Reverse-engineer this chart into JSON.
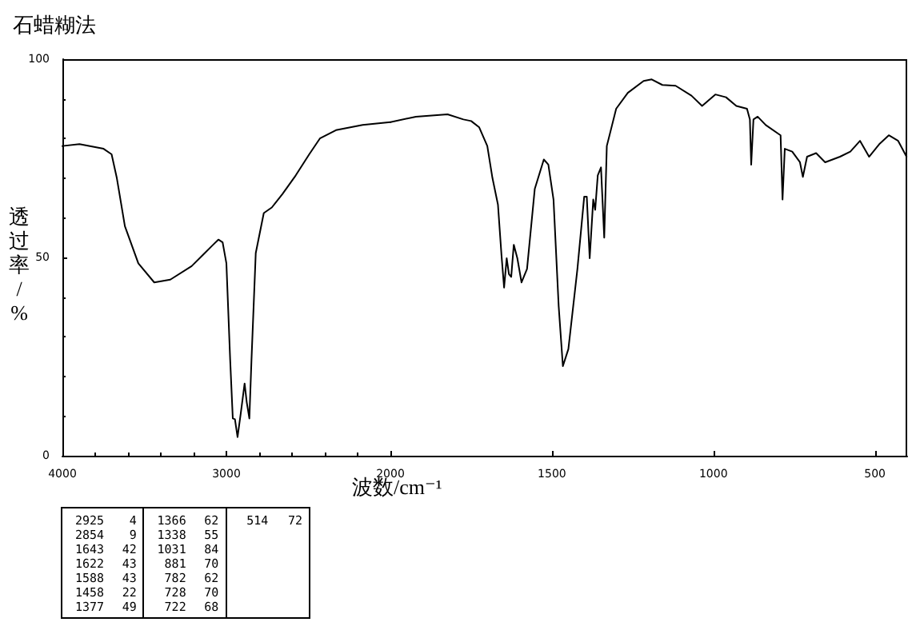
{
  "chart_data": [
    {
      "type": "line",
      "title": "石蜡糊法",
      "xlabel": "波数/cm⁻¹",
      "ylabel": "透过率/%",
      "xlim": [
        4000,
        2000
      ],
      "xticks": [
        4000,
        3000,
        2000
      ],
      "ylim": [
        0,
        100
      ],
      "yticks": [
        0,
        50,
        100
      ],
      "marker": "none",
      "annotations": [
        "2925 4",
        "2854 9",
        "1643 42",
        "1622 43",
        "1588 43",
        "1458 22",
        "1377 49",
        "1366 62",
        "1338 55",
        "1031 84",
        "881 70",
        "782 62",
        "728 70",
        "722 68",
        "514 72"
      ],
      "series": [
        {
          "color": "#000000",
          "x": [
            4000,
            3896,
            3749,
            3700,
            3668,
            3619,
            3537,
            3440,
            3342,
            3212,
            3081,
            3049,
            3023,
            3000,
            2977,
            2961,
            2948,
            2932,
            2912,
            2889,
            2876,
            2860,
            2847,
            2821,
            2772,
            2723,
            2658,
            2577,
            2495,
            2430,
            2332,
            2169,
            2000
          ],
          "values": [
            78.1,
            78.6,
            77.4,
            76,
            70,
            57.9,
            48.5,
            43.7,
            44.4,
            47.8,
            53.2,
            54.5,
            53.8,
            48.5,
            24.2,
            9.4,
            9.2,
            4.7,
            10.8,
            18.2,
            13.5,
            9.4,
            24.2,
            51.1,
            61.2,
            62.6,
            66,
            70.7,
            76,
            80,
            82.1,
            83.4,
            84.1
          ]
        }
      ]
    },
    {
      "type": "line",
      "xlim": [
        2000,
        400
      ],
      "xticks": [
        1500,
        1000,
        500
      ],
      "ylim": [
        0,
        100
      ],
      "tick_labels": "x",
      "marker": "none",
      "series": [
        {
          "color": "#000000",
          "x": [
            2000,
            1921,
            1823,
            1774,
            1750,
            1725,
            1700,
            1684,
            1667,
            1656,
            1648,
            1640,
            1633,
            1626,
            1618,
            1607,
            1594,
            1577,
            1553,
            1525,
            1511,
            1495,
            1479,
            1466,
            1449,
            1421,
            1400,
            1392,
            1383,
            1372,
            1366,
            1358,
            1348,
            1338,
            1330,
            1301,
            1265,
            1216,
            1191,
            1158,
            1117,
            1068,
            1035,
            994,
            961,
            929,
            896,
            887,
            883,
            876,
            863,
            838,
            792,
            786,
            779,
            756,
            732,
            723,
            710,
            682,
            654,
            608,
            576,
            546,
            518,
            485,
            457,
            428,
            402
          ],
          "values": [
            84.1,
            85.5,
            86.1,
            84.8,
            84.4,
            82.8,
            78.1,
            70,
            63.3,
            50.5,
            42.4,
            49.8,
            45.8,
            45.1,
            53.2,
            49.8,
            43.7,
            47.1,
            67.3,
            74.7,
            73.4,
            64.6,
            37.7,
            22.6,
            26.9,
            47.1,
            65.3,
            65.3,
            49.8,
            64.6,
            62,
            70.7,
            72.7,
            55,
            78.1,
            87.5,
            91.5,
            94.5,
            94.9,
            93.5,
            93.3,
            90.8,
            88.2,
            91.1,
            90.4,
            88.2,
            87.5,
            84.8,
            73.4,
            84.8,
            85.5,
            83.4,
            80.8,
            64.6,
            77.4,
            76.7,
            74,
            70.3,
            75.4,
            76.3,
            74,
            75.4,
            76.7,
            79.4,
            75.4,
            78.7,
            80.8,
            79.4,
            75.4
          ]
        }
      ]
    }
  ]
}
